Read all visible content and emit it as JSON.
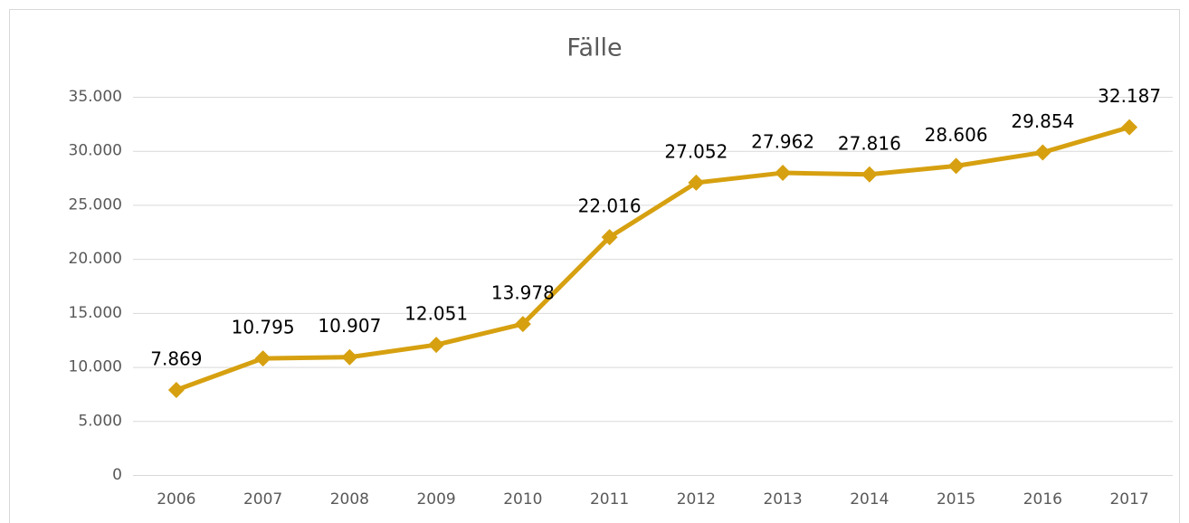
{
  "chart_data": {
    "type": "line",
    "title": "Fälle",
    "categories": [
      "2006",
      "2007",
      "2008",
      "2009",
      "2010",
      "2011",
      "2012",
      "2013",
      "2014",
      "2015",
      "2016",
      "2017"
    ],
    "series": [
      {
        "name": "Fälle",
        "color": "#d6a010",
        "values": [
          7869,
          10795,
          10907,
          12051,
          13978,
          22016,
          27052,
          27962,
          27816,
          28606,
          29854,
          32187
        ],
        "value_labels": [
          "7.869",
          "10.795",
          "10.907",
          "12.051",
          "13.978",
          "22.016",
          "27.052",
          "27.962",
          "27.816",
          "28.606",
          "29.854",
          "32.187"
        ]
      }
    ],
    "ylim": [
      0,
      35000
    ],
    "yticks": [
      0,
      {
        "value": 5000,
        "label": "5.000"
      },
      {
        "value": 10000,
        "label": "10.000"
      },
      {
        "value": 15000,
        "label": "15.000"
      },
      {
        "value": 20000,
        "label": "20.000"
      },
      {
        "value": 25000,
        "label": "25.000"
      },
      {
        "value": 30000,
        "label": "30.000"
      },
      {
        "value": 35000,
        "label": "35.000"
      }
    ],
    "grid": true,
    "legend": false
  }
}
